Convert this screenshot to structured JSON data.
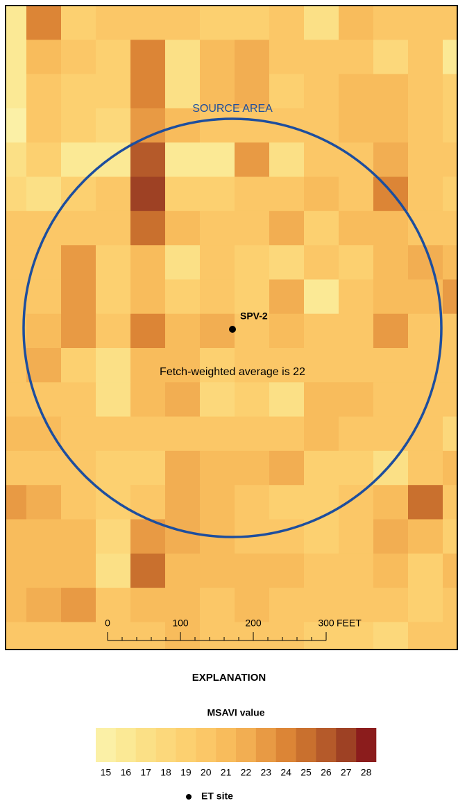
{
  "map": {
    "source_area_label": "SOURCE AREA",
    "site_label": "SPV-2",
    "annotation": "Fetch-weighted average is 22",
    "grid": [
      [
        16,
        24,
        19,
        20,
        20,
        20,
        19,
        19,
        20,
        17,
        21,
        20,
        20,
        20
      ],
      [
        16,
        21,
        20,
        19,
        24,
        17,
        21,
        22,
        20,
        20,
        20,
        18,
        20,
        16
      ],
      [
        16,
        20,
        19,
        19,
        24,
        17,
        21,
        22,
        19,
        20,
        21,
        21,
        20,
        19
      ],
      [
        15,
        20,
        19,
        18,
        23,
        21,
        20,
        20,
        20,
        20,
        21,
        21,
        20,
        19
      ],
      [
        17,
        19,
        16,
        16,
        26,
        16,
        16,
        23,
        17,
        20,
        20,
        22,
        20,
        20
      ],
      [
        18,
        17,
        19,
        20,
        27,
        19,
        19,
        20,
        20,
        21,
        20,
        24,
        20,
        19
      ],
      [
        20,
        20,
        20,
        20,
        25,
        21,
        20,
        20,
        22,
        19,
        21,
        21,
        20,
        20
      ],
      [
        20,
        20,
        23,
        19,
        21,
        17,
        20,
        19,
        18,
        20,
        19,
        21,
        22,
        21
      ],
      [
        20,
        20,
        23,
        19,
        21,
        19,
        20,
        19,
        22,
        16,
        20,
        21,
        21,
        23
      ],
      [
        20,
        21,
        23,
        20,
        24,
        21,
        22,
        20,
        21,
        20,
        20,
        23,
        20,
        20
      ],
      [
        20,
        22,
        19,
        17,
        21,
        21,
        19,
        20,
        20,
        20,
        20,
        20,
        20,
        20
      ],
      [
        20,
        20,
        20,
        17,
        21,
        22,
        18,
        19,
        17,
        21,
        21,
        20,
        20,
        20
      ],
      [
        21,
        21,
        20,
        20,
        20,
        20,
        20,
        20,
        20,
        21,
        20,
        20,
        20,
        18
      ],
      [
        20,
        20,
        20,
        19,
        19,
        22,
        21,
        21,
        22,
        19,
        19,
        17,
        20,
        21
      ],
      [
        23,
        22,
        20,
        19,
        20,
        22,
        21,
        20,
        19,
        19,
        20,
        21,
        25,
        20
      ],
      [
        21,
        21,
        21,
        18,
        23,
        22,
        21,
        20,
        20,
        19,
        20,
        22,
        21,
        19
      ],
      [
        21,
        21,
        21,
        17,
        25,
        21,
        21,
        21,
        21,
        20,
        20,
        21,
        19,
        21
      ],
      [
        21,
        22,
        23,
        20,
        21,
        21,
        20,
        21,
        20,
        20,
        20,
        20,
        19,
        20
      ],
      [
        20,
        20,
        20,
        20,
        20,
        21,
        20,
        20,
        20,
        19,
        19,
        18,
        20,
        20
      ]
    ]
  },
  "scale_bar": {
    "ticks": [
      0,
      100,
      200,
      300
    ],
    "unit": "FEET"
  },
  "legend": {
    "title": "EXPLANATION",
    "subtitle": "MSAVI value",
    "values": [
      15,
      16,
      17,
      18,
      19,
      20,
      21,
      22,
      23,
      24,
      25,
      26,
      27,
      28
    ],
    "colors": [
      "#fbf0a6",
      "#fbe995",
      "#fbe086",
      "#fcd87b",
      "#fcd070",
      "#fbc767",
      "#f8bc5c",
      "#f2ae52",
      "#e89a44",
      "#dc8536",
      "#c9702e",
      "#b55a2a",
      "#9e4124",
      "#8b1c1c"
    ],
    "site_label": "ET site"
  }
}
